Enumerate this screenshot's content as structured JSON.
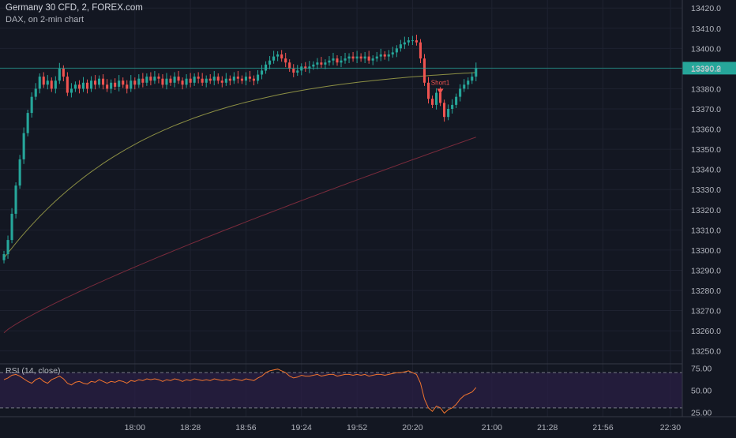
{
  "header": {
    "title": "Germany 30 CFD, 2, FOREX.com",
    "subtitle": "DAX, on 2-min chart"
  },
  "rsi_label": "RSI (14, close)",
  "signal_label": "Short1",
  "colors": {
    "background": "#131722",
    "grid": "#1e2230",
    "up": "#26a69a",
    "down": "#ef5350",
    "ma_fast": "#8c8f44",
    "ma_slow": "#7a2b3c",
    "rsi_line": "#f0742e",
    "rsi_band": "#2a1f44",
    "price_line": "#26a69a",
    "text": "#b2b5be"
  },
  "chart_data": [
    {
      "type": "candlestick",
      "price_axis": {
        "ticks": [
          "13420.0",
          "13410.0",
          "13400.0",
          "13390.0",
          "13380.0",
          "13370.0",
          "13360.0",
          "13350.0",
          "13340.0",
          "13330.0",
          "13320.0",
          "13310.0",
          "13300.0",
          "13290.0",
          "13280.0",
          "13270.0",
          "13260.0",
          "13250.0"
        ],
        "tick_values": [
          13420,
          13410,
          13400,
          13390,
          13380,
          13370,
          13360,
          13350,
          13340,
          13330,
          13320,
          13310,
          13300,
          13290,
          13280,
          13270,
          13260,
          13250
        ],
        "range": [
          13244,
          13424
        ]
      },
      "time_axis": {
        "labels": [
          "18:00",
          "18:28",
          "18:56",
          "19:24",
          "19:52",
          "20:20",
          "21:00",
          "21:28",
          "21:56",
          "22:30"
        ],
        "positions": [
          34,
          48,
          62,
          76,
          90,
          104,
          124,
          138,
          152,
          169
        ]
      },
      "time_axis_range": [
        0,
        172
      ],
      "last_price": 13390.2,
      "last_price_label": "13390.2",
      "closes": [
        13298,
        13305,
        13318,
        13332,
        13345,
        13358,
        13368,
        13376,
        13380,
        13386,
        13382,
        13384,
        13380,
        13384,
        13390,
        13386,
        13378,
        13380,
        13382,
        13380,
        13383,
        13380,
        13384,
        13382,
        13385,
        13382,
        13380,
        13383,
        13381,
        13384,
        13382,
        13380,
        13384,
        13382,
        13385,
        13383,
        13386,
        13384,
        13386,
        13385,
        13382,
        13385,
        13383,
        13386,
        13384,
        13382,
        13385,
        13383,
        13386,
        13385,
        13383,
        13385,
        13384,
        13386,
        13384,
        13383,
        13385,
        13384,
        13386,
        13385,
        13384,
        13386,
        13385,
        13384,
        13387,
        13389,
        13392,
        13394,
        13396,
        13397,
        13395,
        13393,
        13390,
        13388,
        13389,
        13391,
        13390,
        13391,
        13392,
        13393,
        13392,
        13393,
        13394,
        13395,
        13393,
        13394,
        13395,
        13396,
        13395,
        13396,
        13395,
        13396,
        13394,
        13395,
        13396,
        13397,
        13396,
        13397,
        13398,
        13400,
        13402,
        13403,
        13404,
        13404,
        13403,
        13395,
        13383,
        13375,
        13372,
        13378,
        13373,
        13366,
        13370,
        13372,
        13376,
        13380,
        13382,
        13384,
        13386,
        13390.2
      ],
      "ma_fast": {
        "from": 13296,
        "to": 13388
      },
      "ma_slow": {
        "from": 13259,
        "to": 13356
      },
      "signal": {
        "type": "Short",
        "index": 110
      }
    },
    {
      "type": "line",
      "name": "RSI (14, close)",
      "ylim": [
        20,
        80
      ],
      "levels": [
        70,
        30
      ],
      "y_ticks": [
        "75.00",
        "50.00",
        "25.00"
      ],
      "y_tick_values": [
        75,
        50,
        25
      ],
      "values": [
        62,
        64,
        67,
        68,
        66,
        63,
        60,
        58,
        62,
        64,
        60,
        58,
        62,
        64,
        66,
        63,
        58,
        56,
        59,
        60,
        58,
        57,
        60,
        59,
        62,
        60,
        58,
        60,
        59,
        61,
        60,
        58,
        61,
        60,
        62,
        61,
        63,
        62,
        63,
        62,
        60,
        62,
        61,
        63,
        62,
        60,
        62,
        61,
        63,
        62,
        61,
        62,
        61,
        63,
        62,
        61,
        62,
        61,
        63,
        62,
        61,
        63,
        62,
        61,
        64,
        66,
        70,
        72,
        73,
        74,
        72,
        70,
        66,
        64,
        65,
        67,
        66,
        66,
        67,
        68,
        66,
        67,
        68,
        68,
        66,
        67,
        68,
        68,
        67,
        68,
        67,
        68,
        66,
        67,
        68,
        68,
        67,
        68,
        69,
        70,
        70,
        71,
        72,
        70,
        68,
        58,
        40,
        30,
        26,
        32,
        30,
        24,
        28,
        30,
        34,
        40,
        44,
        46,
        48,
        53
      ]
    }
  ]
}
